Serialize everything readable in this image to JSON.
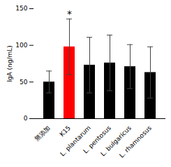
{
  "chart_data": {
    "type": "bar",
    "categories": [
      "無添加",
      "K15",
      "L. plantarum",
      "L. pentosus",
      "L. bulgaricus",
      "L. rhamnosus"
    ],
    "values": [
      50,
      98,
      73,
      76,
      71,
      63
    ],
    "errors": [
      15,
      38,
      38,
      38,
      30,
      35
    ],
    "colors": [
      "#000000",
      "#ff0000",
      "#000000",
      "#000000",
      "#000000",
      "#000000"
    ],
    "ylabel": "IgA (ng/mL)",
    "ylim": [
      0,
      150
    ],
    "yticks": [
      0,
      50,
      100,
      150
    ],
    "annotations": [
      {
        "text": "*",
        "category": "K15"
      }
    ]
  }
}
